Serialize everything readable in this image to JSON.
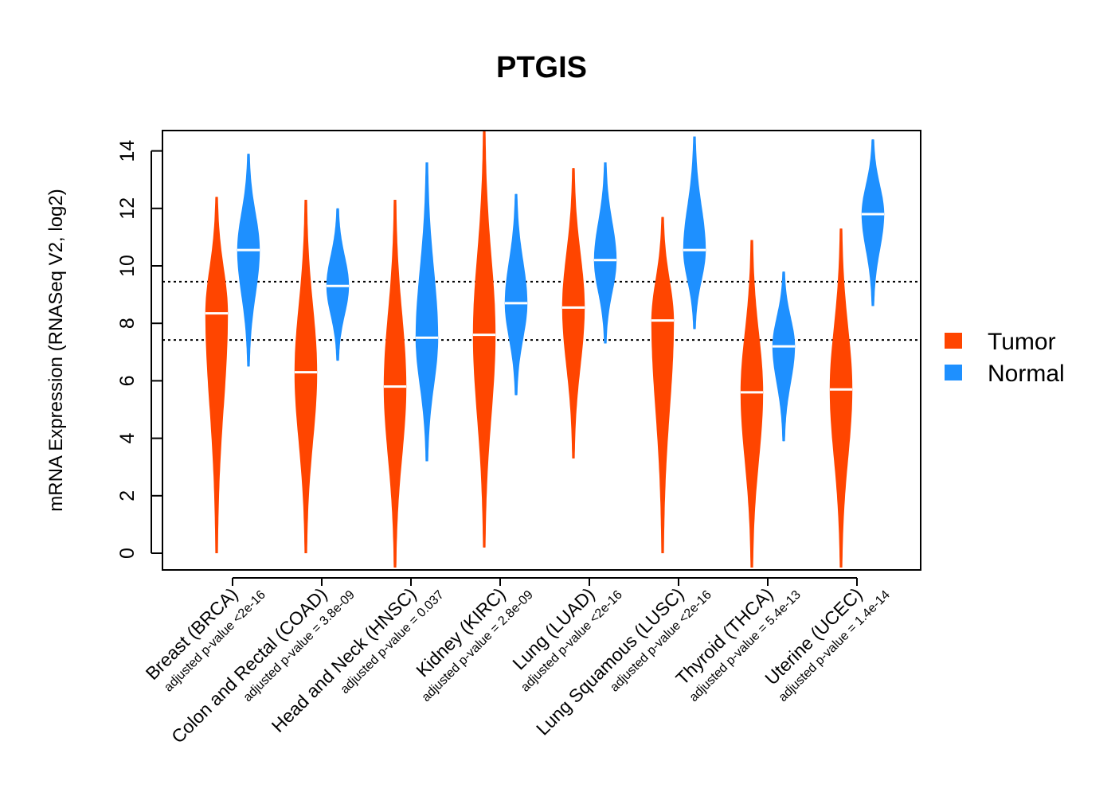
{
  "chart_data": {
    "type": "violin",
    "title": "PTGIS",
    "xlabel": "",
    "ylabel": "mRNA Expression (RNASeq V2, log2)",
    "ylim": [
      -0.6,
      14.7
    ],
    "yticks": [
      0,
      2,
      4,
      6,
      8,
      10,
      12,
      14
    ],
    "reference_lines": [
      9.45,
      7.42
    ],
    "categories": [
      "Breast (BRCA)",
      "Colon and Rectal (COAD)",
      "Head and Neck (HNSC)",
      "Kidney (KIRC)",
      "Lung (LUAD)",
      "Lung Squamous (LUSC)",
      "Thyroid (THCA)",
      "Uterine (UCEC)"
    ],
    "pvalue_labels": [
      "adjusted p-value <2e-16",
      "adjusted p-value = 3.8e-09",
      "adjusted p-value = 0.037",
      "adjusted p-value = 2.8e-09",
      "adjusted p-value <2e-16",
      "adjusted p-value <2e-16",
      "adjusted p-value = 5.4e-13",
      "adjusted p-value = 1.4e-14"
    ],
    "series": [
      {
        "name": "Tumor",
        "color": "#FF4500",
        "medians": [
          8.35,
          6.3,
          5.8,
          7.6,
          8.55,
          8.1,
          5.6,
          5.7
        ],
        "ranges": [
          [
            0,
            12.4
          ],
          [
            0,
            12.3
          ],
          [
            -0.5,
            12.3
          ],
          [
            0.2,
            14.7
          ],
          [
            3.3,
            13.4
          ],
          [
            0,
            11.7
          ],
          [
            -0.5,
            10.9
          ],
          [
            -0.5,
            11.3
          ]
        ]
      },
      {
        "name": "Normal",
        "color": "#1E90FF",
        "medians": [
          10.55,
          9.3,
          7.5,
          8.7,
          10.2,
          10.55,
          7.2,
          11.8
        ],
        "ranges": [
          [
            6.5,
            13.9
          ],
          [
            6.7,
            12.0
          ],
          [
            3.2,
            13.6
          ],
          [
            5.5,
            12.5
          ],
          [
            7.3,
            13.6
          ],
          [
            7.8,
            14.5
          ],
          [
            3.9,
            9.8
          ],
          [
            8.6,
            14.4
          ]
        ]
      }
    ],
    "legend": {
      "position": "right",
      "entries": [
        "Tumor",
        "Normal"
      ]
    }
  }
}
